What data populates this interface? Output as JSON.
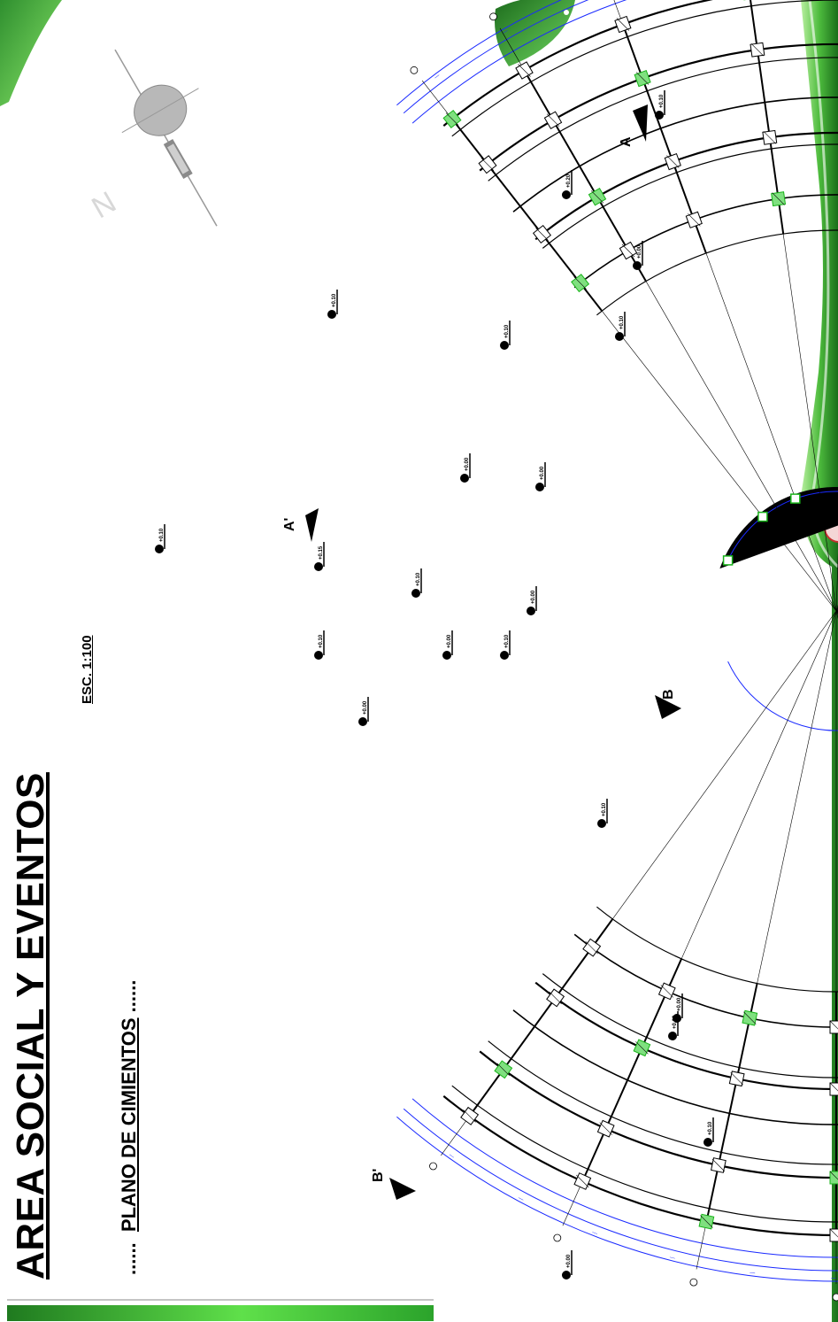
{
  "title": "AREA SOCIAL Y EVENTOS",
  "subtitle": {
    "prefix": "......",
    "text": "PLANO DE CIMIENTOS",
    "suffix": "......"
  },
  "scale": "ESC. 1:100",
  "north_symbol": "N",
  "section_markers": {
    "a_right": "A",
    "a_left": "A'",
    "b_right": "B",
    "b_left": "B'"
  },
  "level_labels": [
    "+0.10",
    "+0.00",
    "+0.15",
    "+0.10",
    "+0.00",
    "+0.10",
    "+0.00",
    "+0.10",
    "+0.20",
    "+0.00",
    "+0.10",
    "+0.10",
    "+0.00",
    "+0.10",
    "+0.00",
    "+0.10",
    "+0.00",
    "+0.10",
    "+0.00",
    "+0.10",
    "+0.10"
  ],
  "colors": {
    "structure": "#000000",
    "dimension_lines": "#1a2aff",
    "footing_highlight": "#19b31a",
    "green_band_dark": "#1f7a1f",
    "green_band_light": "#6ee36a"
  },
  "icons": {
    "north_arrow": "north-arrow-icon",
    "level_marker": "level-marker-icon",
    "section_marker": "section-arrow-icon",
    "leaf": "leaf-icon"
  }
}
